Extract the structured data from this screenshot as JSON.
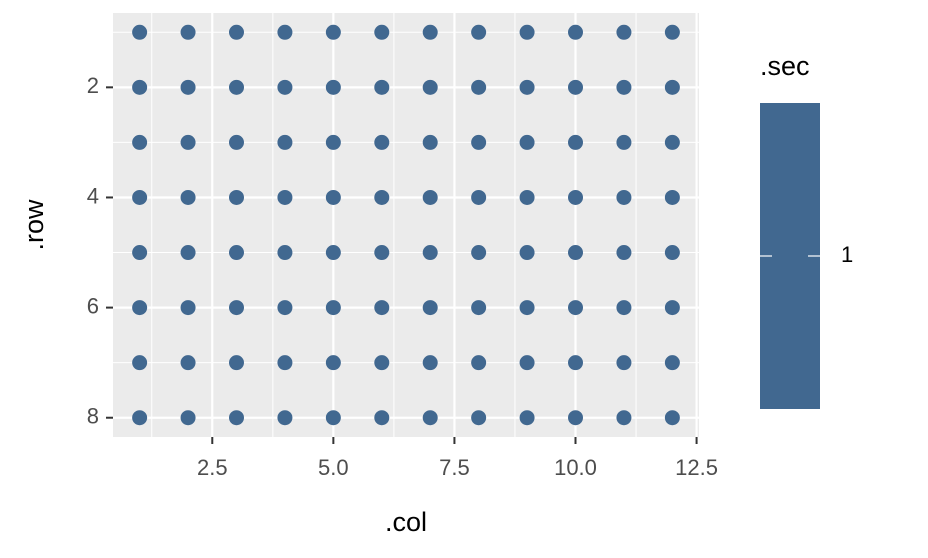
{
  "chart_data": {
    "type": "scatter",
    "x_label": ".col",
    "y_label": ".row",
    "x": [
      1,
      2,
      3,
      4,
      5,
      6,
      7,
      8,
      9,
      10,
      11,
      12,
      1,
      2,
      3,
      4,
      5,
      6,
      7,
      8,
      9,
      10,
      11,
      12,
      1,
      2,
      3,
      4,
      5,
      6,
      7,
      8,
      9,
      10,
      11,
      12,
      1,
      2,
      3,
      4,
      5,
      6,
      7,
      8,
      9,
      10,
      11,
      12,
      1,
      2,
      3,
      4,
      5,
      6,
      7,
      8,
      9,
      10,
      11,
      12,
      1,
      2,
      3,
      4,
      5,
      6,
      7,
      8,
      9,
      10,
      11,
      12,
      1,
      2,
      3,
      4,
      5,
      6,
      7,
      8,
      9,
      10,
      11,
      12,
      1,
      2,
      3,
      4,
      5,
      6,
      7,
      8,
      9,
      10,
      11,
      12
    ],
    "values": [
      1,
      1,
      1,
      1,
      1,
      1,
      1,
      1,
      1,
      1,
      1,
      1,
      2,
      2,
      2,
      2,
      2,
      2,
      2,
      2,
      2,
      2,
      2,
      2,
      3,
      3,
      3,
      3,
      3,
      3,
      3,
      3,
      3,
      3,
      3,
      3,
      4,
      4,
      4,
      4,
      4,
      4,
      4,
      4,
      4,
      4,
      4,
      4,
      5,
      5,
      5,
      5,
      5,
      5,
      5,
      5,
      5,
      5,
      5,
      5,
      6,
      6,
      6,
      6,
      6,
      6,
      6,
      6,
      6,
      6,
      6,
      6,
      7,
      7,
      7,
      7,
      7,
      7,
      7,
      7,
      7,
      7,
      7,
      7,
      8,
      8,
      8,
      8,
      8,
      8,
      8,
      8,
      8,
      8,
      8,
      8
    ],
    "color": "#416890",
    "xlim": [
      0.45,
      12.55
    ],
    "ylim": [
      8.35,
      0.65
    ],
    "y_reversed": true,
    "xticks": [
      {
        "value": 2.5,
        "label": "2.5"
      },
      {
        "value": 5,
        "label": "5.0"
      },
      {
        "value": 7.5,
        "label": "7.5"
      },
      {
        "value": 10,
        "label": "10.0"
      },
      {
        "value": 12.5,
        "label": "12.5"
      }
    ],
    "yticks": [
      2,
      4,
      6,
      8
    ],
    "xminorticks": [
      1.25,
      3.75,
      6.25,
      8.75,
      11.25
    ],
    "yminorticks": [
      1,
      3,
      5,
      7
    ],
    "grid": true,
    "legend": {
      "title": ".sec",
      "ticks": [
        1
      ],
      "color": "#416890"
    }
  }
}
